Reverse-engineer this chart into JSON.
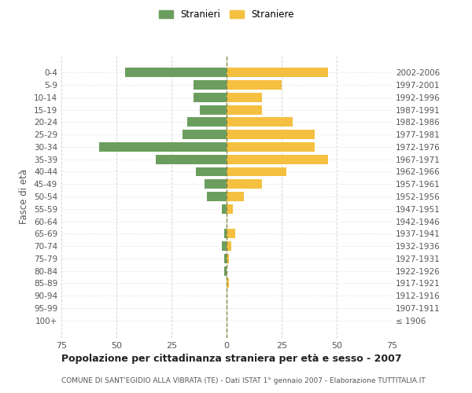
{
  "age_groups": [
    "100+",
    "95-99",
    "90-94",
    "85-89",
    "80-84",
    "75-79",
    "70-74",
    "65-69",
    "60-64",
    "55-59",
    "50-54",
    "45-49",
    "40-44",
    "35-39",
    "30-34",
    "25-29",
    "20-24",
    "15-19",
    "10-14",
    "5-9",
    "0-4"
  ],
  "birth_years": [
    "≤ 1906",
    "1907-1911",
    "1912-1916",
    "1917-1921",
    "1922-1926",
    "1927-1931",
    "1932-1936",
    "1937-1941",
    "1942-1946",
    "1947-1951",
    "1952-1956",
    "1957-1961",
    "1962-1966",
    "1967-1971",
    "1972-1976",
    "1977-1981",
    "1982-1986",
    "1987-1991",
    "1992-1996",
    "1997-2001",
    "2002-2006"
  ],
  "males": [
    0,
    0,
    0,
    0,
    1,
    1,
    2,
    1,
    0,
    2,
    9,
    10,
    14,
    32,
    58,
    20,
    18,
    12,
    15,
    15,
    46
  ],
  "females": [
    0,
    0,
    0,
    1,
    0,
    1,
    2,
    4,
    0,
    3,
    8,
    16,
    27,
    46,
    40,
    40,
    30,
    16,
    16,
    25,
    46
  ],
  "male_color": "#6b9e5e",
  "female_color": "#f5c040",
  "grid_color": "#cccccc",
  "title": "Popolazione per cittadinanza straniera per età e sesso - 2007",
  "subtitle": "COMUNE DI SANT'EGIDIO ALLA VIBRATA (TE) - Dati ISTAT 1° gennaio 2007 - Elaborazione TUTTITALIA.IT",
  "left_ylabel": "Fasce di età",
  "xlim": 75,
  "legend_stranieri": "Stranieri",
  "legend_straniere": "Straniere",
  "bg_color": "#ffffff",
  "dashed_line_color": "#888844"
}
